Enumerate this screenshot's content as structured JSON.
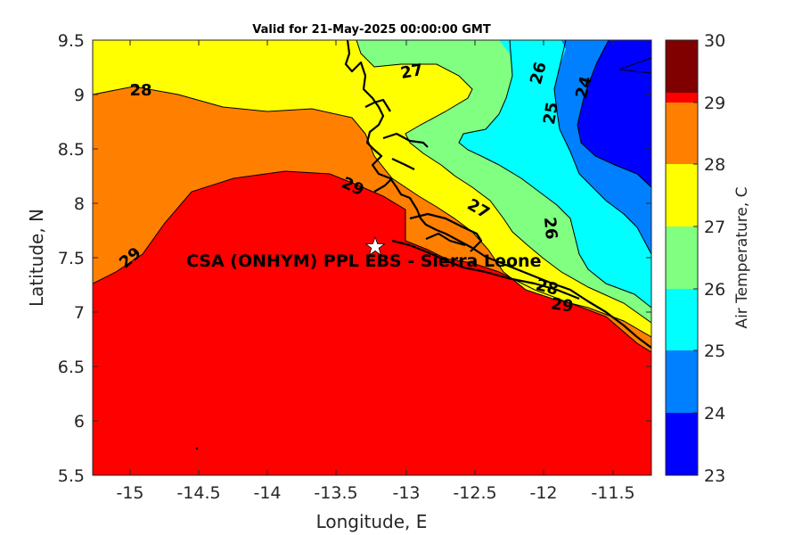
{
  "title": "Valid for 21-May-2025 00:00:00 GMT",
  "map": {
    "xlabel": "Longitude, E",
    "ylabel": "Latitude, N",
    "xlim": [
      -15.25,
      -11.25
    ],
    "ylim": [
      5.5,
      9.5
    ],
    "x_ticks": [
      "-15",
      "-14.5",
      "-14",
      "-13.5",
      "-13",
      "-12.5",
      "-12",
      "-11.5"
    ],
    "y_ticks": [
      "9.5",
      "9",
      "8.5",
      "8",
      "7.5",
      "7",
      "6.5",
      "6",
      "5.5"
    ],
    "site_label": "CSA (ONHYM) PPL EBS - Sierra Leone",
    "site_marker": {
      "lon": -13.23,
      "lat": 7.6,
      "symbol": "white-star"
    },
    "contour_labels": [
      "28",
      "27",
      "26",
      "24",
      "25",
      "29",
      "27",
      "26",
      "29",
      "28",
      "29"
    ]
  },
  "colorbar": {
    "label": "Air Temperature, C",
    "ticks": [
      "30",
      "29",
      "28",
      "27",
      "26",
      "25",
      "24",
      "23"
    ],
    "levels": [
      {
        "range": "23-24",
        "color": "#0000ff"
      },
      {
        "range": "24-25",
        "color": "#0080ff"
      },
      {
        "range": "25-26",
        "color": "#00ffff"
      },
      {
        "range": "26-27",
        "color": "#80ff80"
      },
      {
        "range": "27-28",
        "color": "#ffff00"
      },
      {
        "range": "28-29",
        "color": "#ff8000"
      },
      {
        "range": "29-30",
        "color": "#ff0000"
      },
      {
        "range": "30+",
        "color": "#800000"
      }
    ]
  }
}
